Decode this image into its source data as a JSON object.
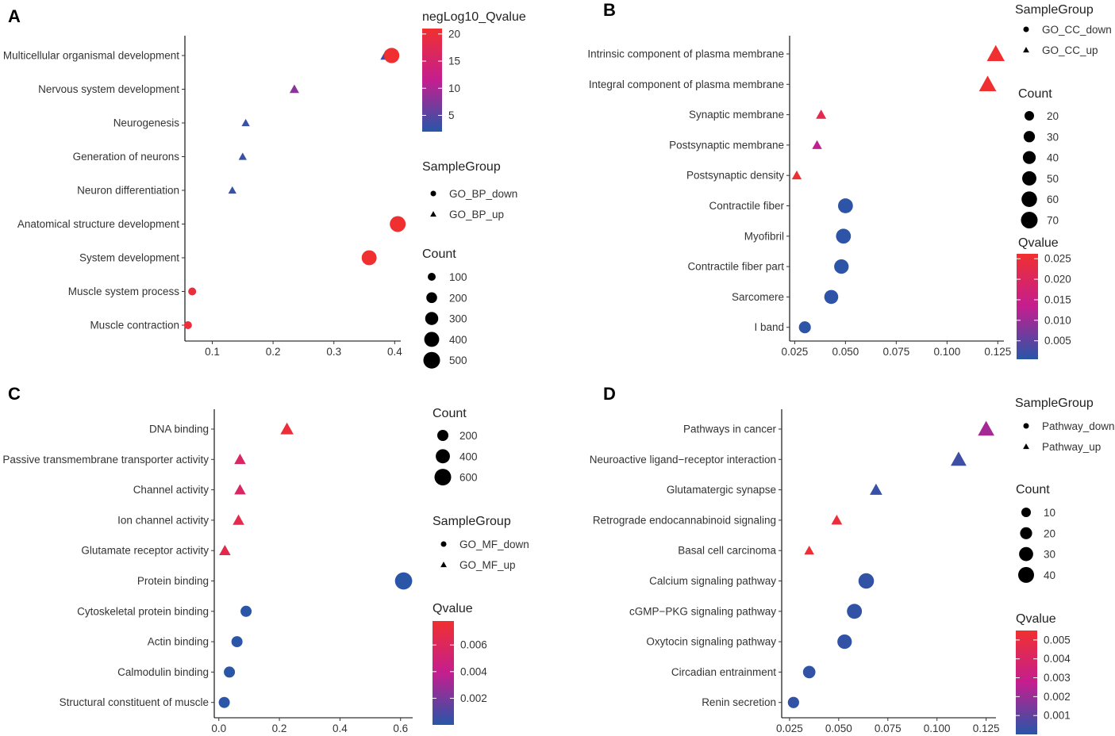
{
  "figure": {
    "colors": {
      "low": "#2756A8",
      "mid": "#C41E8F",
      "high": "#F03030",
      "text": "#333333"
    },
    "shape_legend_title": "SampleGroup",
    "count_legend_title": "Count",
    "shape_icon_names": [
      "circle-icon",
      "triangle-icon"
    ]
  },
  "chart_data": [
    {
      "panel": "A",
      "type": "scatter",
      "categories": [
        "Multicellular organismal development",
        "Nervous system development",
        "Neurogenesis",
        "Generation of neurons",
        "Neuron differentiation",
        "Anatomical structure development",
        "System development",
        "Muscle system process",
        "Muscle contraction"
      ],
      "xlim": [
        0.055,
        0.41
      ],
      "xticks": [
        0.1,
        0.2,
        0.3,
        0.4
      ],
      "xtick_labels": [
        "0.1",
        "0.2",
        "0.3",
        "0.4"
      ],
      "points": [
        {
          "cat": 0,
          "x": 0.385,
          "group": 1,
          "count": 170,
          "color_value": 3
        },
        {
          "cat": 0,
          "x": 0.395,
          "group": 0,
          "count": 420,
          "color_value": 21
        },
        {
          "cat": 1,
          "x": 0.235,
          "group": 1,
          "count": 140,
          "color_value": 8
        },
        {
          "cat": 2,
          "x": 0.155,
          "group": 1,
          "count": 90,
          "color_value": 3
        },
        {
          "cat": 3,
          "x": 0.15,
          "group": 1,
          "count": 85,
          "color_value": 3
        },
        {
          "cat": 4,
          "x": 0.133,
          "group": 1,
          "count": 60,
          "color_value": 3
        },
        {
          "cat": 5,
          "x": 0.405,
          "group": 0,
          "count": 450,
          "color_value": 21
        },
        {
          "cat": 6,
          "x": 0.358,
          "group": 0,
          "count": 400,
          "color_value": 21
        },
        {
          "cat": 7,
          "x": 0.067,
          "group": 0,
          "count": 100,
          "color_value": 20
        },
        {
          "cat": 8,
          "x": 0.06,
          "group": 0,
          "count": 90,
          "color_value": 20
        }
      ],
      "color_legend": {
        "title": "negLog10_Qvalue",
        "min": 2,
        "max": 21,
        "ticks": [
          20,
          15,
          10,
          5
        ],
        "tick_labels": [
          "20",
          "15",
          "10",
          "5"
        ]
      },
      "shape_legend": {
        "labels": [
          "GO_BP_down",
          "GO_BP_up"
        ]
      },
      "size_legend": {
        "values": [
          100,
          200,
          300,
          400,
          500
        ],
        "labels": [
          "100",
          "200",
          "300",
          "400",
          "500"
        ]
      }
    },
    {
      "panel": "B",
      "type": "scatter",
      "categories": [
        "Intrinsic component of plasma membrane",
        "Integral component of plasma membrane",
        "Synaptic membrane",
        "Postsynaptic membrane",
        "Postsynaptic density",
        "Contractile fiber",
        "Myofibril",
        "Contractile fiber part",
        "Sarcomere",
        "I band"
      ],
      "xlim": [
        0.0225,
        0.128
      ],
      "xticks": [
        0.025,
        0.05,
        0.075,
        0.1,
        0.125
      ],
      "xtick_labels": [
        "0.025",
        "0.050",
        "0.075",
        "0.100",
        "0.125"
      ],
      "points": [
        {
          "cat": 0,
          "x": 0.124,
          "group": 1,
          "count": 75,
          "color_value": 0.0262
        },
        {
          "cat": 1,
          "x": 0.12,
          "group": 1,
          "count": 70,
          "color_value": 0.0262
        },
        {
          "cat": 2,
          "x": 0.038,
          "group": 1,
          "count": 22,
          "color_value": 0.022
        },
        {
          "cat": 3,
          "x": 0.036,
          "group": 1,
          "count": 20,
          "color_value": 0.013
        },
        {
          "cat": 4,
          "x": 0.026,
          "group": 1,
          "count": 12,
          "color_value": 0.026
        },
        {
          "cat": 5,
          "x": 0.05,
          "group": 0,
          "count": 55,
          "color_value": 0.001
        },
        {
          "cat": 6,
          "x": 0.049,
          "group": 0,
          "count": 55,
          "color_value": 0.001
        },
        {
          "cat": 7,
          "x": 0.048,
          "group": 0,
          "count": 52,
          "color_value": 0.001
        },
        {
          "cat": 8,
          "x": 0.043,
          "group": 0,
          "count": 48,
          "color_value": 0.001
        },
        {
          "cat": 9,
          "x": 0.03,
          "group": 0,
          "count": 34,
          "color_value": 0.001
        }
      ],
      "color_legend": {
        "title": "Qvalue",
        "min": 0.0005,
        "max": 0.0262,
        "ticks": [
          0.025,
          0.02,
          0.015,
          0.01,
          0.005
        ],
        "tick_labels": [
          "0.025",
          "0.020",
          "0.015",
          "0.010",
          "0.005"
        ]
      },
      "shape_legend": {
        "labels": [
          "GO_CC_down",
          "GO_CC_up"
        ]
      },
      "size_legend": {
        "values": [
          20,
          30,
          40,
          50,
          60,
          70
        ],
        "labels": [
          "20",
          "30",
          "40",
          "50",
          "60",
          "70"
        ]
      }
    },
    {
      "panel": "C",
      "type": "scatter",
      "categories": [
        "DNA binding",
        "Passive transmembrane transporter activity",
        "Channel activity",
        "Ion channel activity",
        "Glutamate receptor activity",
        "Protein binding",
        "Cytoskeletal protein binding",
        "Actin binding",
        "Calmodulin binding",
        "Structural constituent of muscle"
      ],
      "xlim": [
        -0.015,
        0.64
      ],
      "xticks": [
        0,
        0.2,
        0.4,
        0.6
      ],
      "xtick_labels": [
        "0.0",
        "0.2",
        "0.4",
        "0.6"
      ],
      "points": [
        {
          "cat": 0,
          "x": 0.225,
          "group": 1,
          "count": 300,
          "color_value": 0.0074
        },
        {
          "cat": 1,
          "x": 0.07,
          "group": 1,
          "count": 150,
          "color_value": 0.0058
        },
        {
          "cat": 2,
          "x": 0.07,
          "group": 1,
          "count": 150,
          "color_value": 0.0058
        },
        {
          "cat": 3,
          "x": 0.065,
          "group": 1,
          "count": 140,
          "color_value": 0.0067
        },
        {
          "cat": 4,
          "x": 0.02,
          "group": 1,
          "count": 40,
          "color_value": 0.0066
        },
        {
          "cat": 5,
          "x": 0.61,
          "group": 0,
          "count": 650,
          "color_value": 0.0001
        },
        {
          "cat": 6,
          "x": 0.09,
          "group": 0,
          "count": 170,
          "color_value": 0.0001
        },
        {
          "cat": 7,
          "x": 0.06,
          "group": 0,
          "count": 130,
          "color_value": 0.0001
        },
        {
          "cat": 8,
          "x": 0.035,
          "group": 0,
          "count": 90,
          "color_value": 0.0001
        },
        {
          "cat": 9,
          "x": 0.018,
          "group": 0,
          "count": 70,
          "color_value": 0.0001
        }
      ],
      "color_legend": {
        "title": "Qvalue",
        "min": 0.0,
        "max": 0.0078,
        "ticks": [
          0.006,
          0.004,
          0.002
        ],
        "tick_labels": [
          "0.006",
          "0.004",
          "0.002"
        ]
      },
      "shape_legend": {
        "labels": [
          "GO_MF_down",
          "GO_MF_up"
        ]
      },
      "size_legend": {
        "values": [
          200,
          400,
          600
        ],
        "labels": [
          "200",
          "400",
          "600"
        ]
      }
    },
    {
      "panel": "D",
      "type": "scatter",
      "categories": [
        "Pathways in cancer",
        "Neuroactive ligand−receptor interaction",
        "Glutamatergic synapse",
        "Retrograde endocannabinoid signaling",
        "Basal cell carcinoma",
        "Calcium signaling pathway",
        "cGMP−PKG signaling pathway",
        "Oxytocin signaling pathway",
        "Circadian entrainment",
        "Renin secretion"
      ],
      "xlim": [
        0.021,
        0.13
      ],
      "xticks": [
        0.025,
        0.05,
        0.075,
        0.1,
        0.125
      ],
      "xtick_labels": [
        "0.025",
        "0.050",
        "0.075",
        "0.100",
        "0.125"
      ],
      "points": [
        {
          "cat": 0,
          "x": 0.125,
          "group": 1,
          "count": 40,
          "color_value": 0.0022
        },
        {
          "cat": 1,
          "x": 0.111,
          "group": 1,
          "count": 36,
          "color_value": 0.0004
        },
        {
          "cat": 2,
          "x": 0.069,
          "group": 1,
          "count": 20,
          "color_value": 0.0003
        },
        {
          "cat": 3,
          "x": 0.049,
          "group": 1,
          "count": 14,
          "color_value": 0.0052
        },
        {
          "cat": 4,
          "x": 0.035,
          "group": 1,
          "count": 5,
          "color_value": 0.0054
        },
        {
          "cat": 5,
          "x": 0.064,
          "group": 0,
          "count": 38,
          "color_value": 0.0002
        },
        {
          "cat": 6,
          "x": 0.058,
          "group": 0,
          "count": 35,
          "color_value": 0.0002
        },
        {
          "cat": 7,
          "x": 0.053,
          "group": 0,
          "count": 32,
          "color_value": 0.0002
        },
        {
          "cat": 8,
          "x": 0.035,
          "group": 0,
          "count": 22,
          "color_value": 0.0002
        },
        {
          "cat": 9,
          "x": 0.027,
          "group": 0,
          "count": 17,
          "color_value": 0.0002
        }
      ],
      "color_legend": {
        "title": "Qvalue",
        "min": 0.0,
        "max": 0.0055,
        "ticks": [
          0.005,
          0.004,
          0.003,
          0.002,
          0.001
        ],
        "tick_labels": [
          "0.005",
          "0.004",
          "0.003",
          "0.002",
          "0.001"
        ]
      },
      "shape_legend": {
        "labels": [
          "Pathway_down",
          "Pathway_up"
        ]
      },
      "size_legend": {
        "values": [
          10,
          20,
          30,
          40
        ],
        "labels": [
          "10",
          "20",
          "30",
          "40"
        ]
      }
    }
  ]
}
